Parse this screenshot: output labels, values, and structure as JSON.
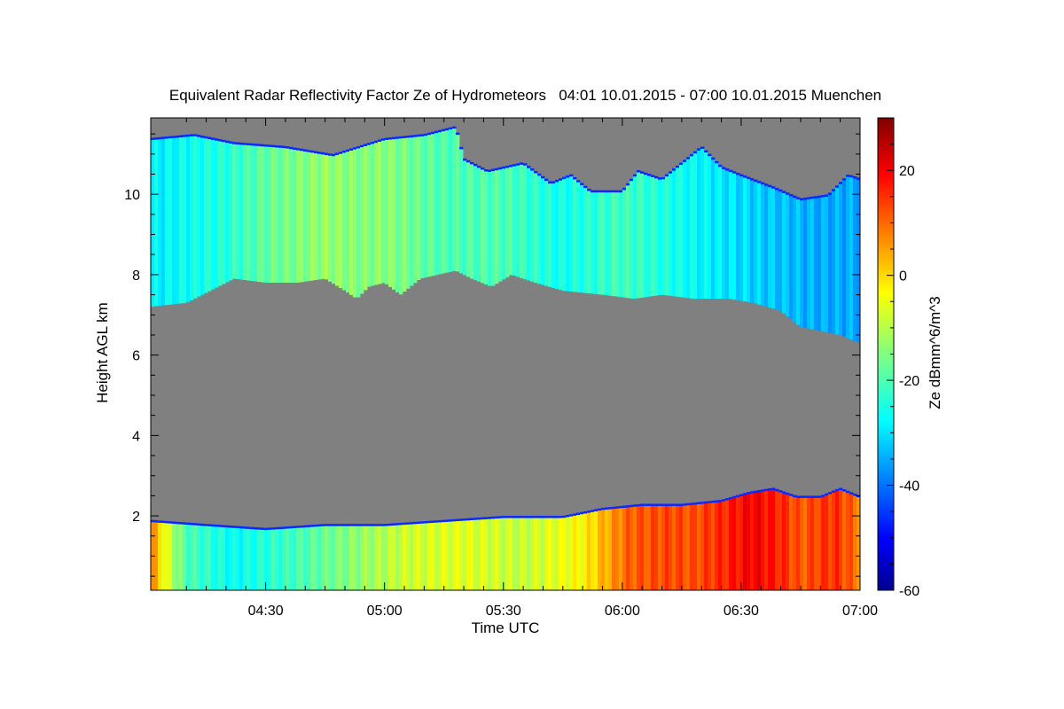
{
  "chart_data": {
    "type": "heatmap",
    "title": "Equivalent Radar Reflectivity Factor Ze of Hydrometeors   04:01 10.01.2015 - 07:00 10.01.2015 Muenchen",
    "xlabel": "Time UTC",
    "ylabel": "Height AGL km",
    "x_range_minutes": [
      241,
      420
    ],
    "x_ticks": [
      {
        "value": 270,
        "label": "04:30"
      },
      {
        "value": 300,
        "label": "05:00"
      },
      {
        "value": 330,
        "label": "05:30"
      },
      {
        "value": 360,
        "label": "06:00"
      },
      {
        "value": 390,
        "label": "06:30"
      },
      {
        "value": 420,
        "label": "07:00"
      }
    ],
    "ylim": [
      0.15,
      11.9
    ],
    "y_ticks": [
      2,
      4,
      6,
      8,
      10
    ],
    "colorbar": {
      "label": "Ze dBmm^6/m^3",
      "range": [
        -60,
        30
      ],
      "ticks": [
        20,
        0,
        -20,
        -40,
        -60
      ],
      "colormap": "jet"
    },
    "no_signal_color": "#808080",
    "layers": [
      {
        "name": "upper cloud",
        "top_km": [
          [
            241,
            11.4
          ],
          [
            252,
            11.5
          ],
          [
            262,
            11.3
          ],
          [
            275,
            11.2
          ],
          [
            287,
            11.0
          ],
          [
            300,
            11.4
          ],
          [
            310,
            11.5
          ],
          [
            318,
            11.7
          ],
          [
            320,
            10.9
          ],
          [
            326,
            10.6
          ],
          [
            335,
            10.8
          ],
          [
            342,
            10.3
          ],
          [
            347,
            10.5
          ],
          [
            352,
            10.1
          ],
          [
            360,
            10.1
          ],
          [
            364,
            10.6
          ],
          [
            370,
            10.4
          ],
          [
            380,
            11.2
          ],
          [
            385,
            10.7
          ],
          [
            390,
            10.5
          ],
          [
            398,
            10.2
          ],
          [
            405,
            9.9
          ],
          [
            412,
            10.0
          ],
          [
            417,
            10.5
          ],
          [
            420,
            10.4
          ]
        ],
        "bottom_km": [
          [
            241,
            7.2
          ],
          [
            250,
            7.3
          ],
          [
            256,
            7.6
          ],
          [
            262,
            7.9
          ],
          [
            270,
            7.8
          ],
          [
            278,
            7.8
          ],
          [
            285,
            7.9
          ],
          [
            290,
            7.6
          ],
          [
            293,
            7.4
          ],
          [
            296,
            7.7
          ],
          [
            300,
            7.8
          ],
          [
            304,
            7.5
          ],
          [
            309,
            7.9
          ],
          [
            318,
            8.1
          ],
          [
            322,
            7.9
          ],
          [
            327,
            7.7
          ],
          [
            332,
            8.0
          ],
          [
            338,
            7.8
          ],
          [
            345,
            7.6
          ],
          [
            355,
            7.5
          ],
          [
            363,
            7.4
          ],
          [
            370,
            7.5
          ],
          [
            378,
            7.4
          ],
          [
            387,
            7.4
          ],
          [
            393,
            7.3
          ],
          [
            400,
            7.1
          ],
          [
            405,
            6.7
          ],
          [
            410,
            6.6
          ],
          [
            415,
            6.5
          ],
          [
            420,
            6.3
          ]
        ],
        "ze_dbz": [
          [
            241,
            -29
          ],
          [
            260,
            -24
          ],
          [
            270,
            -18
          ],
          [
            285,
            -13
          ],
          [
            295,
            -15
          ],
          [
            300,
            -14
          ],
          [
            315,
            -20
          ],
          [
            330,
            -20
          ],
          [
            345,
            -26
          ],
          [
            360,
            -21
          ],
          [
            380,
            -28
          ],
          [
            395,
            -32
          ],
          [
            410,
            -35
          ],
          [
            420,
            -35
          ]
        ]
      },
      {
        "name": "lower precipitation",
        "top_km": [
          [
            241,
            1.9
          ],
          [
            255,
            1.8
          ],
          [
            270,
            1.7
          ],
          [
            285,
            1.8
          ],
          [
            300,
            1.8
          ],
          [
            315,
            1.9
          ],
          [
            330,
            2.0
          ],
          [
            345,
            2.0
          ],
          [
            355,
            2.2
          ],
          [
            365,
            2.3
          ],
          [
            375,
            2.3
          ],
          [
            385,
            2.4
          ],
          [
            392,
            2.6
          ],
          [
            398,
            2.7
          ],
          [
            404,
            2.5
          ],
          [
            410,
            2.5
          ],
          [
            415,
            2.7
          ],
          [
            420,
            2.5
          ]
        ],
        "bottom_km": 0.15,
        "ze_dbz": [
          [
            241,
            8
          ],
          [
            245,
            -6
          ],
          [
            250,
            -20
          ],
          [
            262,
            -27
          ],
          [
            275,
            -22
          ],
          [
            290,
            -15
          ],
          [
            305,
            -8
          ],
          [
            320,
            -6
          ],
          [
            335,
            -9
          ],
          [
            350,
            -3
          ],
          [
            356,
            4
          ],
          [
            362,
            11
          ],
          [
            372,
            13
          ],
          [
            378,
            12
          ],
          [
            386,
            16
          ],
          [
            393,
            20
          ],
          [
            400,
            16
          ],
          [
            405,
            11
          ],
          [
            410,
            14
          ],
          [
            414,
            15
          ],
          [
            420,
            8
          ]
        ]
      }
    ]
  }
}
